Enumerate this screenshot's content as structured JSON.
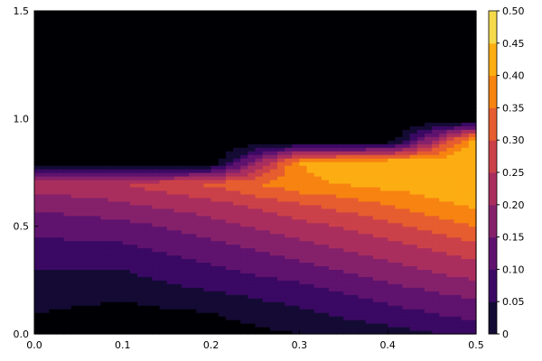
{
  "chart_data": {
    "type": "heatmap",
    "subtype": "filled-contour",
    "title": "",
    "xlabel": "",
    "ylabel": "",
    "xlim": [
      0,
      0.5
    ],
    "ylim": [
      0,
      1.5
    ],
    "x_ticks": [
      "0.0",
      "0.1",
      "0.2",
      "0.3",
      "0.4",
      "0.5"
    ],
    "y_ticks": [
      "0.0",
      "0.5",
      "1.0",
      "1.5"
    ],
    "colorbar": {
      "range": [
        0,
        0.5
      ],
      "levels": [
        0,
        0.05,
        0.1,
        0.15,
        0.2,
        0.25,
        0.3,
        0.35,
        0.4,
        0.45,
        0.5
      ],
      "tick_labels": [
        "0",
        "0.05",
        "0.10",
        "0.15",
        "0.20",
        "0.25",
        "0.30",
        "0.35",
        "0.40",
        "0.45",
        "0.50"
      ]
    },
    "colormap": [
      "#000004",
      "#140b34",
      "#3a0963",
      "#5f136e",
      "#85216b",
      "#a92e5e",
      "#cb4149",
      "#e65d2f",
      "#f78311",
      "#fcad12",
      "#f5db4c",
      "#fcffa4"
    ],
    "x": [
      0.0,
      0.1,
      0.2,
      0.3,
      0.4,
      0.5
    ],
    "y": [
      0.0,
      0.1,
      0.2,
      0.3,
      0.4,
      0.5,
      0.6,
      0.7,
      0.8,
      0.9,
      1.0,
      1.1,
      1.2,
      1.3,
      1.4,
      1.5
    ],
    "z": [
      [
        0.02,
        0.0,
        0.02,
        0.05,
        0.08,
        0.11
      ],
      [
        0.05,
        0.03,
        0.05,
        0.09,
        0.13,
        0.17
      ],
      [
        0.08,
        0.07,
        0.1,
        0.13,
        0.18,
        0.22
      ],
      [
        0.1,
        0.1,
        0.14,
        0.18,
        0.23,
        0.28
      ],
      [
        0.13,
        0.14,
        0.18,
        0.23,
        0.28,
        0.33
      ],
      [
        0.17,
        0.18,
        0.23,
        0.28,
        0.33,
        0.4
      ],
      [
        0.21,
        0.24,
        0.28,
        0.34,
        0.4,
        0.46
      ],
      [
        0.28,
        0.3,
        0.36,
        0.44,
        0.47,
        0.5
      ],
      [
        0.0,
        0.0,
        0.0,
        0.45,
        0.49,
        0.5
      ],
      [
        0.0,
        0.0,
        0.0,
        0.0,
        0.0,
        0.49
      ],
      [
        0.0,
        0.0,
        0.0,
        0.0,
        0.0,
        0.0
      ],
      [
        0.0,
        0.0,
        0.0,
        0.0,
        0.0,
        0.0
      ],
      [
        0.0,
        0.0,
        0.0,
        0.0,
        0.0,
        0.0
      ],
      [
        0.0,
        0.0,
        0.0,
        0.0,
        0.0,
        0.0
      ],
      [
        0.0,
        0.0,
        0.0,
        0.0,
        0.0,
        0.0
      ],
      [
        0.0,
        0.0,
        0.0,
        0.0,
        0.0,
        0.0
      ]
    ],
    "grid": false,
    "legend": "colorbar-right"
  }
}
